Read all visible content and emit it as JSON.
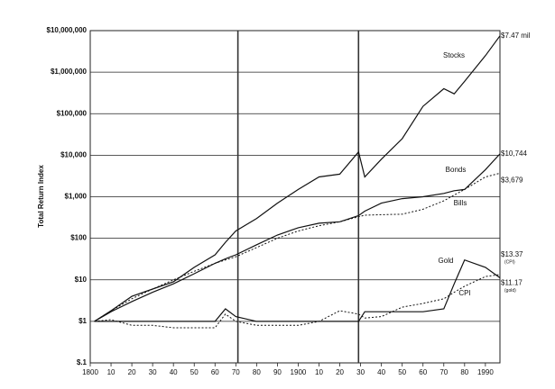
{
  "chart_data": {
    "type": "line",
    "y_label": "Total Return Index",
    "log_y": true,
    "grid": true,
    "x": [
      1802,
      1810,
      1820,
      1830,
      1840,
      1850,
      1860,
      1865,
      1870,
      1880,
      1890,
      1900,
      1910,
      1920,
      1929,
      1932,
      1940,
      1950,
      1960,
      1970,
      1975,
      1980,
      1990,
      1997
    ],
    "xlim": [
      1800,
      1997
    ],
    "xticks": [
      1800,
      {
        "value": 1810,
        "label": "10"
      },
      {
        "value": 1820,
        "label": "20"
      },
      {
        "value": 1830,
        "label": "30"
      },
      {
        "value": 1840,
        "label": "40"
      },
      {
        "value": 1850,
        "label": "50"
      },
      {
        "value": 1860,
        "label": "60"
      },
      {
        "value": 1870,
        "label": "70"
      },
      {
        "value": 1880,
        "label": "80"
      },
      {
        "value": 1890,
        "label": "90"
      },
      1900,
      {
        "value": 1910,
        "label": "10"
      },
      {
        "value": 1920,
        "label": "20"
      },
      {
        "value": 1930,
        "label": "30"
      },
      {
        "value": 1940,
        "label": "40"
      },
      {
        "value": 1950,
        "label": "50"
      },
      {
        "value": 1960,
        "label": "60"
      },
      {
        "value": 1970,
        "label": "70"
      },
      {
        "value": 1980,
        "label": "80"
      },
      1990
    ],
    "ylim": [
      0.1,
      10000000
    ],
    "yticks": [
      {
        "value": 0.1,
        "label": "$.1"
      },
      {
        "value": 1,
        "label": "$1"
      },
      {
        "value": 10,
        "label": "$10"
      },
      {
        "value": 100,
        "label": "$100"
      },
      {
        "value": 1000,
        "label": "$1,000"
      },
      {
        "value": 10000,
        "label": "$10,000"
      },
      {
        "value": 100000,
        "label": "$100,000"
      },
      {
        "value": 1000000,
        "label": "$1,000,000"
      },
      {
        "value": 10000000,
        "label": "$10,000,000"
      }
    ],
    "reference_lines_x": [
      1871,
      1929
    ],
    "series": [
      {
        "name": "Stocks",
        "color": "#111111",
        "dash": false,
        "values": [
          1,
          1.8,
          4,
          6,
          9,
          20,
          40,
          80,
          150,
          300,
          700,
          1500,
          3000,
          3500,
          12000,
          3000,
          8000,
          25000,
          150000,
          400000,
          300000,
          600000,
          2500000,
          7470000
        ],
        "value_labels": [
          null,
          null,
          null,
          null,
          null,
          null,
          null,
          null,
          null,
          null,
          null,
          null,
          null,
          null,
          null,
          null,
          null,
          null,
          null,
          null,
          null,
          null,
          null,
          "$7.47 mil"
        ]
      },
      {
        "name": "Bonds",
        "color": "#111111",
        "dash": false,
        "values": [
          1,
          1.7,
          3,
          5,
          8,
          14,
          25,
          32,
          40,
          70,
          120,
          180,
          230,
          250,
          350,
          450,
          700,
          900,
          1000,
          1200,
          1400,
          1500,
          4500,
          10744
        ],
        "value_labels": [
          null,
          null,
          null,
          null,
          null,
          null,
          null,
          null,
          null,
          null,
          null,
          null,
          null,
          null,
          null,
          null,
          null,
          null,
          null,
          null,
          null,
          null,
          null,
          "$10,744"
        ]
      },
      {
        "name": "Bills",
        "color": "#111111",
        "dash": true,
        "values": [
          1,
          1.8,
          3.5,
          6,
          10,
          16,
          25,
          30,
          36,
          60,
          100,
          150,
          200,
          250,
          330,
          360,
          370,
          380,
          500,
          800,
          1100,
          1500,
          3000,
          3679
        ],
        "value_labels": [
          null,
          null,
          null,
          null,
          null,
          null,
          null,
          null,
          null,
          null,
          null,
          null,
          null,
          null,
          null,
          null,
          null,
          null,
          null,
          null,
          null,
          null,
          null,
          "$3,679"
        ]
      },
      {
        "name": "Gold",
        "color": "#111111",
        "dash": false,
        "values": [
          1,
          1,
          1,
          1,
          1,
          1,
          1,
          2,
          1.3,
          1,
          1,
          1,
          1,
          1,
          1,
          1.7,
          1.7,
          1.7,
          1.7,
          2,
          8,
          30,
          20,
          11.17
        ],
        "value_labels": [
          null,
          null,
          null,
          null,
          null,
          null,
          null,
          null,
          null,
          null,
          null,
          null,
          null,
          null,
          null,
          null,
          null,
          null,
          null,
          null,
          null,
          null,
          null,
          "$11.17"
        ],
        "note": "(gold)"
      },
      {
        "name": "CPI",
        "color": "#111111",
        "dash": true,
        "values": [
          1,
          1.1,
          0.8,
          0.8,
          0.7,
          0.7,
          0.7,
          1.5,
          1,
          0.8,
          0.8,
          0.8,
          1,
          1.8,
          1.5,
          1.2,
          1.3,
          2.2,
          2.7,
          3.5,
          5,
          7,
          12,
          13.37
        ],
        "value_labels": [
          null,
          null,
          null,
          null,
          null,
          null,
          null,
          null,
          null,
          null,
          null,
          null,
          null,
          null,
          null,
          null,
          null,
          null,
          null,
          null,
          null,
          null,
          null,
          "$13.37"
        ],
        "note": "(CPI)"
      }
    ]
  }
}
